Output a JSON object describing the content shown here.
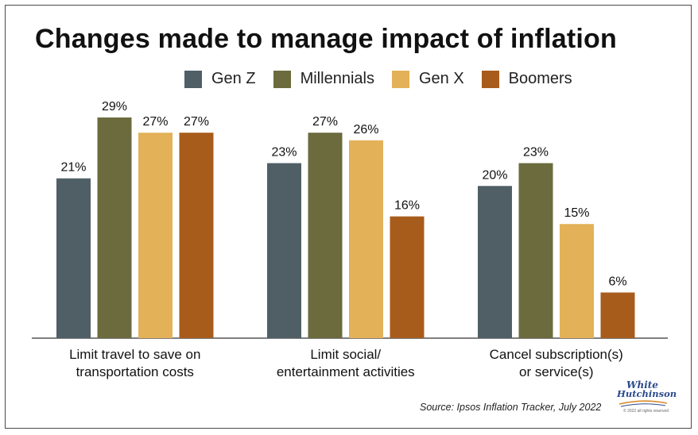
{
  "chart_data": {
    "type": "bar",
    "title": "Changes made to manage impact of inflation",
    "categories": [
      [
        "Limit travel to save on",
        "transportation costs"
      ],
      [
        "Limit social/",
        "entertainment activities"
      ],
      [
        "Cancel subscription(s)",
        "or service(s)"
      ]
    ],
    "series": [
      {
        "name": "Gen Z",
        "color": "#505f66",
        "values": [
          21,
          23,
          20
        ]
      },
      {
        "name": "Millennials",
        "color": "#6b6b3e",
        "values": [
          29,
          27,
          23
        ]
      },
      {
        "name": "Gen X",
        "color": "#e3b158",
        "values": [
          27,
          26,
          15
        ]
      },
      {
        "name": "Boomers",
        "color": "#a85c1c",
        "values": [
          27,
          16,
          6
        ]
      }
    ],
    "value_suffix": "%",
    "ylim": [
      0,
      29
    ],
    "grid": false,
    "legend_position": "top"
  },
  "source": "Source: Ipsos Inflation Tracker, July 2022",
  "logo": {
    "line1": "White",
    "line2": "Hutchinson",
    "copyright": "© 2022 all rights reserved"
  }
}
